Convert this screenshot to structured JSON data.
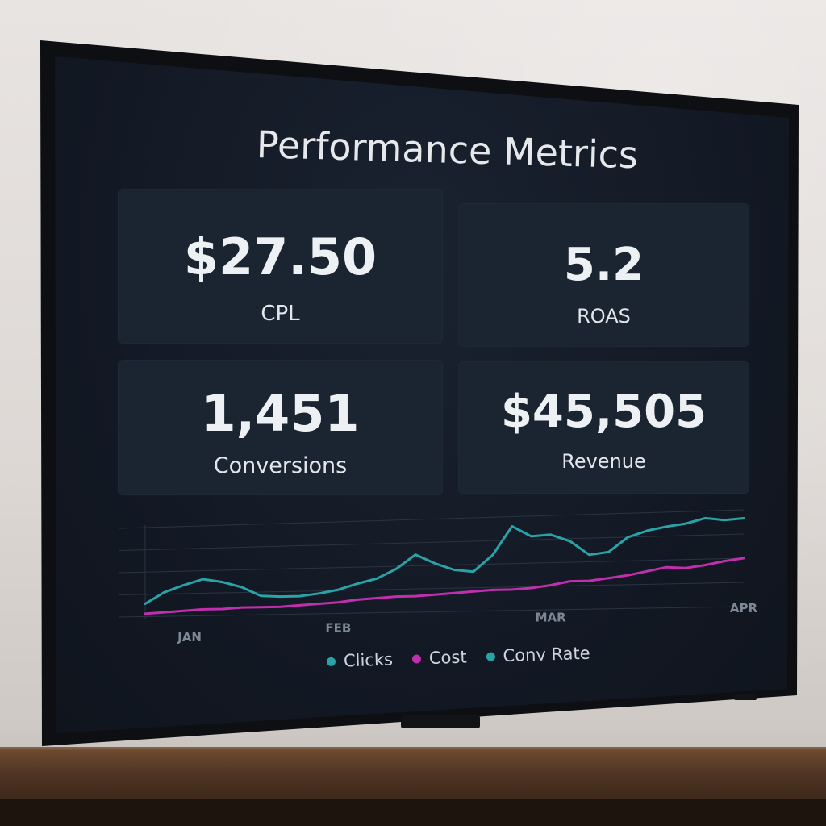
{
  "dashboard": {
    "title": "Performance Metrics",
    "metrics": [
      {
        "value": "$27.50",
        "label": "CPL"
      },
      {
        "value": "5.2",
        "label": "ROAS"
      },
      {
        "value": "1,451",
        "label": "Conversions"
      },
      {
        "value": "$45,505",
        "label": "Revenue"
      }
    ]
  },
  "legend": {
    "items": [
      {
        "label": "Clicks",
        "color": "#2aa3a8"
      },
      {
        "label": "Cost",
        "color": "#c12fae"
      },
      {
        "label": "Conv Rate",
        "color": "#2aa3a8"
      }
    ]
  },
  "colors": {
    "screen_bg": "#131924",
    "card_bg": "#1b2431",
    "teal": "#2aa3a8",
    "magenta": "#c12fae"
  },
  "chart_data": {
    "type": "line",
    "x": [
      "JAN",
      "",
      "",
      "",
      "",
      "",
      "",
      "",
      "",
      "",
      "FEB",
      "",
      "",
      "",
      "",
      "",
      "",
      "",
      "",
      "",
      "",
      "MAR",
      "",
      "",
      "",
      "",
      "",
      "",
      "",
      "",
      "",
      "APR"
    ],
    "xticks": [
      "JAN",
      "FEB",
      "MAR",
      "APR"
    ],
    "series": [
      {
        "name": "Clicks",
        "color": "#2aa3a8",
        "values": [
          12,
          22,
          28,
          33,
          30,
          25,
          17,
          16,
          16,
          18,
          21,
          26,
          30,
          38,
          50,
          42,
          36,
          34,
          48,
          72,
          63,
          64,
          58,
          46,
          48,
          60,
          65,
          68,
          70,
          74,
          72,
          73
        ]
      },
      {
        "name": "Cost",
        "color": "#c12fae",
        "values": [
          3,
          4,
          5,
          6,
          6,
          7,
          7,
          7,
          8,
          9,
          10,
          12,
          13,
          14,
          14,
          15,
          16,
          17,
          18,
          18,
          19,
          21,
          24,
          24,
          26,
          28,
          31,
          34,
          33,
          35,
          38,
          40
        ]
      }
    ],
    "ylim": [
      0,
      80
    ],
    "grid": true,
    "legend_position": "bottom"
  }
}
